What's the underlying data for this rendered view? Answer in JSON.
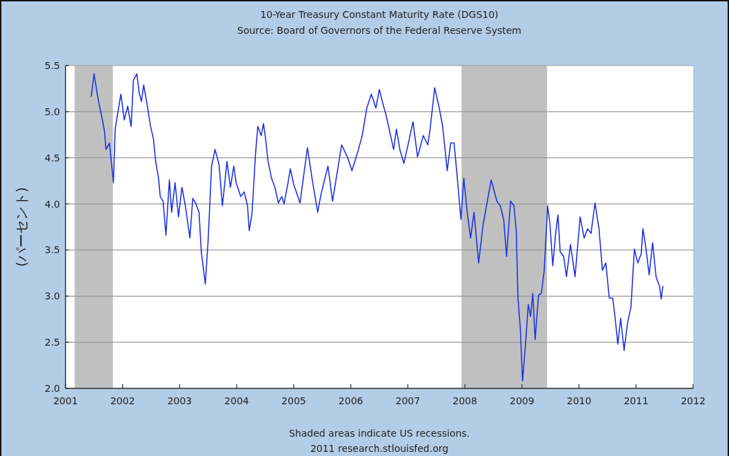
{
  "chart_data": {
    "type": "line",
    "title": "10-Year Treasury Constant Maturity Rate (DGS10)",
    "subtitle": "Source: Board of Governors of the Federal Reserve System",
    "ylabel": "(パーセント)",
    "annotations": [
      "Shaded areas indicate US recessions.",
      "2011 research.stlouisfed.org"
    ],
    "xlim": [
      2001,
      2012
    ],
    "xticks": [
      2001,
      2002,
      2003,
      2004,
      2005,
      2006,
      2007,
      2008,
      2009,
      2010,
      2011,
      2012
    ],
    "ylim": [
      2.0,
      5.5
    ],
    "yticks": [
      {
        "value": 2.0,
        "label": "2.0"
      },
      2.5,
      {
        "value": 3.0,
        "label": "3.0"
      },
      3.5,
      {
        "value": 4.0,
        "label": "4.0"
      },
      4.5,
      {
        "value": 5.0,
        "label": "5.0"
      },
      5.5
    ],
    "grid": "y",
    "bands": [
      {
        "axis": "x",
        "from": 2001.16,
        "to": 2001.83,
        "color": "#c0c0c0"
      },
      {
        "axis": "x",
        "from": 2007.94,
        "to": 2009.44,
        "color": "#c0c0c0"
      }
    ],
    "series": [
      {
        "color": "#1f32e0",
        "x": [
          2001.45,
          2001.5,
          2001.57,
          2001.63,
          2001.68,
          2001.71,
          2001.77,
          2001.84,
          2001.87,
          2001.93,
          2001.97,
          2002.03,
          2002.09,
          2002.15,
          2002.19,
          2002.25,
          2002.29,
          2002.33,
          2002.37,
          2002.44,
          2002.49,
          2002.54,
          2002.58,
          2002.63,
          2002.66,
          2002.71,
          2002.76,
          2002.82,
          2002.86,
          2002.92,
          2002.98,
          2003.04,
          2003.1,
          2003.18,
          2003.23,
          2003.28,
          2003.34,
          2003.38,
          2003.45,
          2003.5,
          2003.56,
          2003.62,
          2003.69,
          2003.75,
          2003.83,
          2003.89,
          2003.95,
          2003.99,
          2004.07,
          2004.13,
          2004.19,
          2004.22,
          2004.27,
          2004.33,
          2004.37,
          2004.43,
          2004.47,
          2004.51,
          2004.55,
          2004.61,
          2004.67,
          2004.73,
          2004.79,
          2004.83,
          2004.9,
          2004.94,
          2005.0,
          2005.11,
          2005.24,
          2005.32,
          2005.42,
          2005.48,
          2005.6,
          2005.68,
          2005.84,
          2005.94,
          2006.02,
          2006.12,
          2006.2,
          2006.28,
          2006.36,
          2006.44,
          2006.5,
          2006.56,
          2006.62,
          2006.68,
          2006.75,
          2006.8,
          2006.86,
          2006.93,
          2007.01,
          2007.09,
          2007.17,
          2007.27,
          2007.35,
          2007.39,
          2007.47,
          2007.55,
          2007.61,
          2007.69,
          2007.75,
          2007.81,
          2007.87,
          2007.93,
          2007.98,
          2008.04,
          2008.1,
          2008.16,
          2008.24,
          2008.32,
          2008.46,
          2008.56,
          2008.62,
          2008.68,
          2008.73,
          2008.8,
          2008.86,
          2008.9,
          2008.93,
          2008.97,
          2009.01,
          2009.06,
          2009.11,
          2009.15,
          2009.19,
          2009.23,
          2009.29,
          2009.34,
          2009.39,
          2009.45,
          2009.49,
          2009.54,
          2009.59,
          2009.63,
          2009.67,
          2009.73,
          2009.78,
          2009.85,
          2009.93,
          2010.02,
          2010.09,
          2010.15,
          2010.21,
          2010.28,
          2010.35,
          2010.41,
          2010.47,
          2010.53,
          2010.59,
          2010.63,
          2010.68,
          2010.73,
          2010.79,
          2010.85,
          2010.91,
          2010.97,
          2011.03,
          2011.09,
          2011.12,
          2011.17,
          2011.23,
          2011.29,
          2011.35,
          2011.41,
          2011.44,
          2011.47
        ],
        "values": [
          5.16,
          5.41,
          5.14,
          4.96,
          4.8,
          4.59,
          4.66,
          4.23,
          4.81,
          5.04,
          5.19,
          4.91,
          5.06,
          4.84,
          5.34,
          5.41,
          5.21,
          5.11,
          5.29,
          5.04,
          4.84,
          4.71,
          4.46,
          4.28,
          4.08,
          4.03,
          3.66,
          4.26,
          3.91,
          4.23,
          3.86,
          4.18,
          3.98,
          3.63,
          4.06,
          4.01,
          3.91,
          3.48,
          3.13,
          3.61,
          4.41,
          4.59,
          4.43,
          3.98,
          4.46,
          4.18,
          4.41,
          4.23,
          4.08,
          4.13,
          3.98,
          3.71,
          3.91,
          4.54,
          4.84,
          4.74,
          4.87,
          4.69,
          4.46,
          4.28,
          4.18,
          4.01,
          4.08,
          4.0,
          4.23,
          4.38,
          4.21,
          4.01,
          4.61,
          4.28,
          3.91,
          4.11,
          4.41,
          4.03,
          4.64,
          4.51,
          4.36,
          4.56,
          4.74,
          5.04,
          5.19,
          5.04,
          5.24,
          5.09,
          4.96,
          4.79,
          4.59,
          4.81,
          4.59,
          4.44,
          4.66,
          4.89,
          4.51,
          4.74,
          4.64,
          4.81,
          5.26,
          5.04,
          4.84,
          4.36,
          4.66,
          4.66,
          4.26,
          3.83,
          4.28,
          3.91,
          3.63,
          3.91,
          3.36,
          3.78,
          4.26,
          4.03,
          3.98,
          3.83,
          3.43,
          4.03,
          3.98,
          3.71,
          2.98,
          2.66,
          2.08,
          2.46,
          2.91,
          2.78,
          3.03,
          2.53,
          3.01,
          3.03,
          3.28,
          3.98,
          3.78,
          3.33,
          3.68,
          3.88,
          3.48,
          3.43,
          3.21,
          3.56,
          3.21,
          3.86,
          3.63,
          3.73,
          3.68,
          4.01,
          3.73,
          3.28,
          3.36,
          2.98,
          2.98,
          2.78,
          2.48,
          2.76,
          2.41,
          2.71,
          2.88,
          3.51,
          3.36,
          3.46,
          3.73,
          3.53,
          3.23,
          3.58,
          3.21,
          3.11,
          2.97,
          3.11
        ]
      }
    ]
  }
}
